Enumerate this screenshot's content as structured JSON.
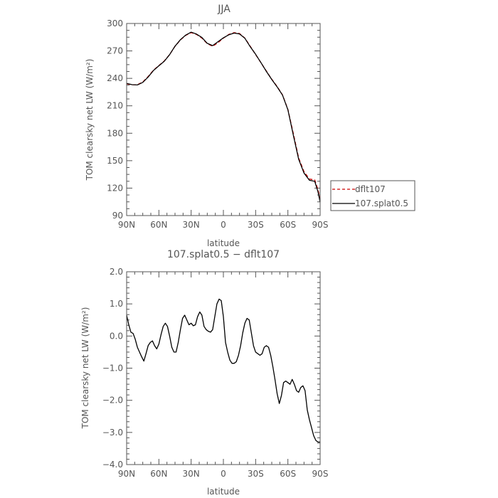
{
  "chart_data": [
    {
      "type": "line",
      "title": "JJA",
      "xlabel": "latitude",
      "ylabel": "TOM clearsky net LW (W/m²)",
      "xticklabels": [
        "90N",
        "60N",
        "30N",
        "0",
        "30S",
        "60S",
        "90S"
      ],
      "xticks": [
        90,
        60,
        30,
        0,
        -30,
        -60,
        -90
      ],
      "xlim": [
        90,
        -90
      ],
      "ylim": [
        90,
        300
      ],
      "yticks": [
        90,
        120,
        150,
        180,
        210,
        240,
        270,
        300
      ],
      "yticklabels": [
        "90",
        "120",
        "150",
        "180",
        "210",
        "240",
        "270",
        "300"
      ],
      "legend_position": "right",
      "x": [
        90,
        85,
        80,
        75,
        70,
        65,
        60,
        55,
        50,
        45,
        40,
        35,
        30,
        25,
        20,
        15,
        10,
        5,
        0,
        -5,
        -10,
        -15,
        -20,
        -25,
        -30,
        -35,
        -40,
        -45,
        -50,
        -55,
        -60,
        -65,
        -70,
        -75,
        -80,
        -85,
        -88,
        -90
      ],
      "series": [
        {
          "name": "dflt107",
          "color": "#cc0000",
          "dash": "dashed",
          "values": [
            234,
            233,
            233,
            236,
            242,
            249,
            254,
            259,
            266,
            275,
            282,
            287,
            290,
            288,
            284,
            278,
            275,
            279,
            284,
            288,
            290,
            289,
            284,
            275,
            266,
            257,
            248,
            239,
            231,
            222,
            206,
            180,
            153,
            138,
            130,
            129,
            118,
            108
          ]
        },
        {
          "name": "107.splat0.5",
          "color": "#000000",
          "dash": "solid",
          "values": [
            234.5,
            233.1,
            232.8,
            235.6,
            241.4,
            248.7,
            253.7,
            258.7,
            265.9,
            275.2,
            282.3,
            287.3,
            290.5,
            288.4,
            284.7,
            278.3,
            275.8,
            280.1,
            284.3,
            287.6,
            289.5,
            288.6,
            283.8,
            274.5,
            266.3,
            257.1,
            247.6,
            238.8,
            230.6,
            221.7,
            205.6,
            178.3,
            151.6,
            136.5,
            128.6,
            127.4,
            116.0,
            104.7
          ]
        }
      ]
    },
    {
      "type": "line",
      "title": "107.splat0.5 − dflt107",
      "xlabel": "latitude",
      "ylabel": "TOM clearsky net LW (W/m²)",
      "xticklabels": [
        "90N",
        "60N",
        "30N",
        "0",
        "30S",
        "60S",
        "90S"
      ],
      "xticks": [
        90,
        60,
        30,
        0,
        -30,
        -60,
        -90
      ],
      "xlim": [
        90,
        -90
      ],
      "ylim": [
        -4.0,
        2.0
      ],
      "yticks": [
        -4,
        -3,
        -2,
        -1,
        0,
        1,
        2
      ],
      "yticklabels": [
        "−4.0",
        "−3.0",
        "−2.0",
        "−1.0",
        "0.0",
        "1.0",
        "2.0"
      ],
      "x": [
        90,
        88,
        86,
        84,
        82,
        80,
        78,
        76,
        74,
        72,
        70,
        68,
        66,
        64,
        62,
        60,
        58,
        56,
        54,
        52,
        50,
        48,
        46,
        44,
        42,
        40,
        38,
        36,
        34,
        32,
        30,
        28,
        26,
        24,
        22,
        20,
        18,
        16,
        14,
        12,
        10,
        8,
        6,
        4,
        2,
        0,
        -2,
        -4,
        -6,
        -8,
        -10,
        -12,
        -14,
        -16,
        -18,
        -20,
        -22,
        -24,
        -26,
        -28,
        -30,
        -32,
        -34,
        -36,
        -38,
        -40,
        -42,
        -44,
        -46,
        -48,
        -50,
        -52,
        -54,
        -56,
        -58,
        -60,
        -62,
        -64,
        -66,
        -68,
        -70,
        -72,
        -74,
        -76,
        -78,
        -80,
        -82,
        -84,
        -86,
        -88,
        -90
      ],
      "series": [
        {
          "name": "",
          "color": "#000000",
          "values": [
            0.65,
            0.35,
            0.12,
            0.08,
            -0.1,
            -0.35,
            -0.5,
            -0.65,
            -0.78,
            -0.55,
            -0.3,
            -0.2,
            -0.15,
            -0.3,
            -0.4,
            -0.25,
            0.05,
            0.3,
            0.4,
            0.3,
            0.0,
            -0.35,
            -0.5,
            -0.5,
            -0.2,
            0.2,
            0.55,
            0.65,
            0.5,
            0.35,
            0.4,
            0.32,
            0.35,
            0.6,
            0.75,
            0.65,
            0.3,
            0.2,
            0.15,
            0.12,
            0.2,
            0.6,
            1.0,
            1.15,
            1.1,
            0.6,
            -0.2,
            -0.5,
            -0.75,
            -0.85,
            -0.85,
            -0.8,
            -0.6,
            -0.3,
            0.1,
            0.4,
            0.55,
            0.5,
            0.1,
            -0.3,
            -0.5,
            -0.55,
            -0.6,
            -0.55,
            -0.35,
            -0.3,
            -0.35,
            -0.6,
            -0.95,
            -1.35,
            -1.8,
            -2.1,
            -1.85,
            -1.45,
            -1.4,
            -1.45,
            -1.5,
            -1.35,
            -1.5,
            -1.7,
            -1.75,
            -1.6,
            -1.55,
            -1.7,
            -2.3,
            -2.6,
            -2.85,
            -3.1,
            -3.25,
            -3.3,
            -3.3
          ]
        }
      ]
    }
  ]
}
